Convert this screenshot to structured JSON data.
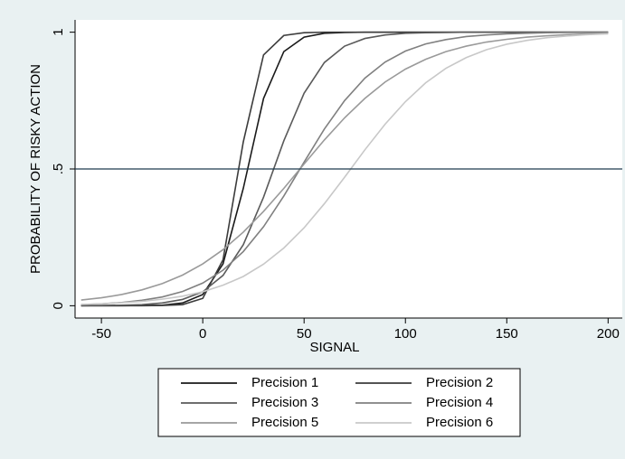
{
  "chart_data": {
    "type": "line",
    "x": [
      -60,
      -50,
      -40,
      -30,
      -20,
      -10,
      0,
      10,
      20,
      30,
      40,
      50,
      60,
      70,
      80,
      90,
      100,
      110,
      120,
      130,
      140,
      150,
      160,
      170,
      180,
      190,
      200
    ],
    "series": [
      {
        "name": "Precision 1",
        "color": "#1a1a1a",
        "values": [
          0,
          0,
          0,
          0.001,
          0.002,
          0.01,
          0.041,
          0.153,
          0.429,
          0.758,
          0.929,
          0.982,
          0.996,
          0.999,
          1,
          1,
          1,
          1,
          1,
          1,
          1,
          1,
          1,
          1,
          1,
          1,
          1
        ]
      },
      {
        "name": "Precision 2",
        "color": "#3c3c3c",
        "values": [
          0,
          0,
          0,
          0,
          0.001,
          0.004,
          0.027,
          0.168,
          0.599,
          0.917,
          0.988,
          0.998,
          1,
          1,
          1,
          1,
          1,
          1,
          1,
          1,
          1,
          1,
          1,
          1,
          1,
          1,
          1
        ]
      },
      {
        "name": "Precision 3",
        "color": "#5a5a5a",
        "values": [
          0,
          0.001,
          0.002,
          0.004,
          0.01,
          0.023,
          0.051,
          0.111,
          0.223,
          0.397,
          0.603,
          0.777,
          0.889,
          0.949,
          0.977,
          0.99,
          0.996,
          0.998,
          0.999,
          1,
          1,
          1,
          1,
          1,
          1,
          1,
          1
        ]
      },
      {
        "name": "Precision 4",
        "color": "#808080",
        "values": [
          0.004,
          0.007,
          0.012,
          0.02,
          0.032,
          0.052,
          0.083,
          0.13,
          0.198,
          0.289,
          0.401,
          0.525,
          0.646,
          0.75,
          0.832,
          0.891,
          0.931,
          0.957,
          0.973,
          0.984,
          0.99,
          0.994,
          0.996,
          0.998,
          0.999,
          0.999,
          1
        ]
      },
      {
        "name": "Precision 5",
        "color": "#9a9a9a",
        "values": [
          0.021,
          0.029,
          0.041,
          0.058,
          0.081,
          0.112,
          0.153,
          0.205,
          0.269,
          0.345,
          0.429,
          0.518,
          0.606,
          0.687,
          0.758,
          0.818,
          0.865,
          0.901,
          0.929,
          0.949,
          0.964,
          0.974,
          0.982,
          0.987,
          0.991,
          0.994,
          0.996
        ]
      },
      {
        "name": "Precision 6",
        "color": "#c8c8c8",
        "values": [
          0.005,
          0.007,
          0.011,
          0.016,
          0.024,
          0.035,
          0.051,
          0.075,
          0.107,
          0.152,
          0.211,
          0.285,
          0.373,
          0.47,
          0.57,
          0.664,
          0.746,
          0.815,
          0.868,
          0.907,
          0.936,
          0.956,
          0.97,
          0.98,
          0.986,
          0.991,
          0.994
        ]
      }
    ],
    "x_label": "SIGNAL",
    "y_label": "PROBABILITY OF RISKY ACTION",
    "xlim": [
      -63,
      207
    ],
    "xticks": [
      -50,
      0,
      50,
      100,
      150,
      200
    ],
    "ylim": [
      -0.045,
      1.045
    ],
    "yticks": [
      0,
      {
        "value": 0.5,
        "label": ".5"
      },
      1
    ],
    "yline": 0.5,
    "legend": "bottom"
  }
}
